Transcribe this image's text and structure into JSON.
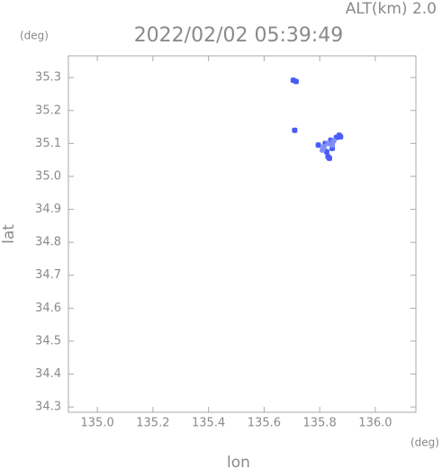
{
  "chart_data": {
    "type": "scatter",
    "header": "ALT(km) 2.0",
    "title": "2022/02/02 05:39:49",
    "y_unit": "(deg)",
    "x_unit": "(deg)",
    "ylabel": "lat",
    "xlabel": "lon",
    "xlim": [
      134.896,
      136.146
    ],
    "ylim": [
      34.284,
      35.366
    ],
    "xticks": [
      {
        "value": 135.0,
        "label": "135.0"
      },
      135.2,
      135.4,
      135.6,
      135.8,
      {
        "value": 136.0,
        "label": "136.0"
      }
    ],
    "yticks": [
      34.3,
      34.4,
      34.5,
      34.6,
      34.7,
      34.8,
      34.9,
      {
        "value": 35.0,
        "label": "35.0"
      },
      35.1,
      35.2,
      35.3
    ],
    "series": [
      {
        "color": "#4a5cf5",
        "x": [
          135.705,
          135.715,
          135.71,
          135.87,
          135.86,
          135.875,
          135.84,
          135.83,
          135.825,
          135.835,
          135.845,
          135.795,
          135.82
        ],
        "y": [
          35.292,
          35.288,
          35.14,
          35.125,
          35.118,
          35.12,
          35.11,
          35.06,
          35.075,
          35.055,
          35.085,
          35.095,
          35.1
        ]
      },
      {
        "color": "#7f8ff8",
        "x": [
          135.83,
          135.845,
          135.815,
          135.85,
          135.81
        ],
        "y": [
          35.1,
          35.095,
          35.09,
          35.108,
          35.08
        ]
      }
    ]
  }
}
